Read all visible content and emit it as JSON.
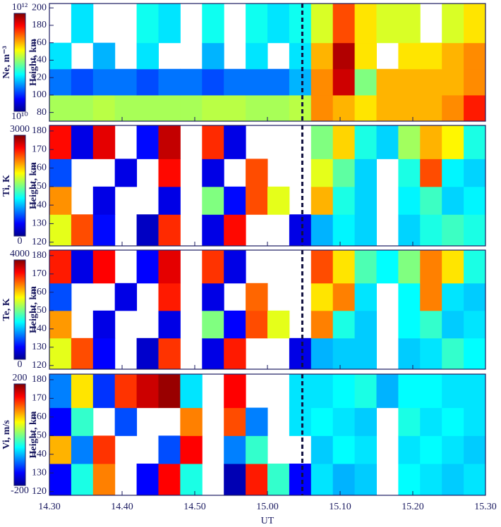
{
  "chart_data": [
    {
      "type": "heatmap",
      "colorbar_label": "Ne, m⁻³",
      "ylabel": "Height, km",
      "colormap": "jet",
      "clog": true,
      "clim": [
        10000000000.0,
        1000000000000.0
      ],
      "cticks": [
        {
          "value": 10000000000.0,
          "label": "10¹⁰"
        },
        {
          "value": 1000000000000.0,
          "label": "10¹²"
        }
      ],
      "xlim": [
        14.5,
        15.5
      ],
      "ylim": [
        70,
        205
      ],
      "yticks": [
        80,
        100,
        120,
        140,
        160,
        180,
        200
      ],
      "vline": 15.08,
      "xbins": [
        14.5,
        14.55,
        14.6,
        14.65,
        14.7,
        14.75,
        14.8,
        14.85,
        14.9,
        14.95,
        15,
        15.05,
        15.1,
        15.15,
        15.2,
        15.25,
        15.3,
        15.35,
        15.4,
        15.45,
        15.5
      ],
      "ybins": [
        70,
        100,
        130,
        160,
        205
      ],
      "z": [
        [
          120000000000.0,
          120000000000.0,
          130000000000.0,
          120000000000.0,
          120000000000.0,
          120000000000.0,
          120000000000.0,
          130000000000.0,
          130000000000.0,
          120000000000.0,
          120000000000.0,
          130000000000.0,
          300000000000.0,
          250000000000.0,
          200000000000.0,
          250000000000.0,
          250000000000.0,
          250000000000.0,
          300000000000.0,
          500000000000.0
        ],
        [
          30000000000.0,
          25000000000.0,
          30000000000.0,
          30000000000.0,
          25000000000.0,
          30000000000.0,
          30000000000.0,
          25000000000.0,
          30000000000.0,
          30000000000.0,
          30000000000.0,
          40000000000.0,
          300000000000.0,
          700000000000.0,
          100000000000.0,
          250000000000.0,
          250000000000.0,
          250000000000.0,
          250000000000.0,
          300000000000.0
        ],
        [
          50000000000.0,
          null,
          40000000000.0,
          null,
          50000000000.0,
          null,
          null,
          40000000000.0,
          null,
          50000000000.0,
          null,
          50000000000.0,
          250000000000.0,
          800000000000.0,
          200000000000.0,
          null,
          200000000000.0,
          200000000000.0,
          250000000000.0,
          300000000000.0
        ],
        [
          null,
          50000000000.0,
          null,
          null,
          60000000000.0,
          50000000000.0,
          null,
          60000000000.0,
          null,
          60000000000.0,
          50000000000.0,
          60000000000.0,
          150000000000.0,
          400000000000.0,
          200000000000.0,
          150000000000.0,
          150000000000.0,
          null,
          150000000000.0,
          200000000000.0
        ]
      ]
    },
    {
      "type": "heatmap",
      "colorbar_label": "Ti, K",
      "ylabel": "Height, km",
      "colormap": "jet",
      "clim": [
        0,
        3000
      ],
      "cticks": [
        0,
        3000
      ],
      "xlim": [
        14.5,
        15.5
      ],
      "ylim": [
        118,
        183
      ],
      "yticks": [
        120,
        130,
        140,
        150,
        160,
        170,
        180
      ],
      "vline": 15.08,
      "xbins": [
        14.5,
        14.55,
        14.6,
        14.65,
        14.7,
        14.75,
        14.8,
        14.85,
        14.9,
        14.95,
        15,
        15.05,
        15.1,
        15.15,
        15.2,
        15.25,
        15.3,
        15.35,
        15.4,
        15.45,
        15.5
      ],
      "ybins": [
        118,
        135,
        150,
        165,
        183
      ],
      "z": [
        [
          1800,
          2400,
          400,
          null,
          200,
          2500,
          null,
          300,
          2600,
          null,
          null,
          300,
          900,
          1100,
          1000,
          null,
          1000,
          1200,
          1300,
          1200
        ],
        [
          2200,
          null,
          300,
          null,
          null,
          300,
          null,
          1500,
          400,
          2400,
          1800,
          null,
          2100,
          1200,
          1000,
          null,
          1100,
          1300,
          1000,
          1100
        ],
        [
          600,
          null,
          null,
          300,
          null,
          2600,
          null,
          300,
          null,
          2400,
          null,
          null,
          1800,
          1400,
          1000,
          null,
          1200,
          2400,
          1100,
          1000
        ],
        [
          2600,
          300,
          2700,
          null,
          400,
          2800,
          null,
          2500,
          300,
          null,
          null,
          null,
          1500,
          2000,
          1200,
          1000,
          1600,
          2100,
          1900,
          1200
        ]
      ]
    },
    {
      "type": "heatmap",
      "colorbar_label": "Te, K",
      "ylabel": "Height, km",
      "colormap": "jet",
      "clim": [
        0,
        4000
      ],
      "cticks": [
        0,
        4000
      ],
      "xlim": [
        14.5,
        15.5
      ],
      "ylim": [
        118,
        183
      ],
      "yticks": [
        120,
        130,
        140,
        150,
        160,
        170,
        180
      ],
      "vline": 15.08,
      "xbins": [
        14.5,
        14.55,
        14.6,
        14.65,
        14.7,
        14.75,
        14.8,
        14.85,
        14.9,
        14.95,
        15,
        15.05,
        15.1,
        15.15,
        15.2,
        15.25,
        15.3,
        15.35,
        15.4,
        15.45,
        15.5
      ],
      "ybins": [
        118,
        135,
        150,
        165,
        183
      ],
      "z": [
        [
          2400,
          3200,
          500,
          null,
          300,
          3300,
          null,
          400,
          3400,
          null,
          null,
          400,
          1200,
          1300,
          1300,
          null,
          1300,
          1400,
          1700,
          1500
        ],
        [
          2900,
          null,
          400,
          null,
          null,
          400,
          null,
          2000,
          500,
          3200,
          2400,
          null,
          3000,
          1600,
          1300,
          null,
          1500,
          1700,
          1300,
          1400
        ],
        [
          800,
          null,
          null,
          400,
          null,
          3400,
          null,
          400,
          null,
          3100,
          null,
          null,
          2600,
          3000,
          1400,
          null,
          1500,
          3000,
          1400,
          1300
        ],
        [
          3400,
          400,
          3500,
          null,
          500,
          3600,
          null,
          3300,
          400,
          null,
          null,
          null,
          3200,
          2600,
          1800,
          1500,
          2000,
          3000,
          2600,
          1600
        ]
      ]
    },
    {
      "type": "heatmap",
      "colorbar_label": "Vi, m/s",
      "ylabel": "Height, km",
      "xlabel": "UT",
      "colormap": "jet",
      "clim": [
        -200,
        200
      ],
      "cticks": [
        -200,
        200
      ],
      "xlim": [
        14.5,
        15.5
      ],
      "ylim": [
        118,
        183
      ],
      "yticks": [
        120,
        130,
        140,
        150,
        160,
        170,
        180
      ],
      "vline": 15.08,
      "xticks": [
        {
          "value": 14.5,
          "label": "14.30"
        },
        {
          "value": 14.6667,
          "label": "14.40"
        },
        {
          "value": 14.8333,
          "label": "14.50"
        },
        {
          "value": 15,
          "label": "15.00"
        },
        {
          "value": 15.1667,
          "label": "15.10"
        },
        {
          "value": 15.3333,
          "label": "15.20"
        },
        {
          "value": 15.5,
          "label": "15.30"
        }
      ],
      "xbins": [
        14.5,
        14.55,
        14.6,
        14.65,
        14.7,
        14.75,
        14.8,
        14.85,
        14.9,
        14.95,
        15,
        15.05,
        15.1,
        15.15,
        15.2,
        15.25,
        15.3,
        15.35,
        15.4,
        15.45,
        15.5
      ],
      "ybins": [
        118,
        135,
        150,
        165,
        183
      ],
      "z": [
        [
          -150,
          -40,
          100,
          null,
          -150,
          150,
          -40,
          null,
          -180,
          140,
          -30,
          -150,
          -60,
          -80,
          -70,
          null,
          -50,
          -60,
          -70,
          -60
        ],
        [
          80,
          -100,
          130,
          null,
          null,
          -120,
          150,
          null,
          -100,
          -30,
          null,
          null,
          -70,
          -50,
          -60,
          null,
          -60,
          -50,
          -60,
          -70
        ],
        [
          -150,
          -30,
          null,
          -120,
          null,
          null,
          100,
          null,
          120,
          -100,
          null,
          -60,
          -50,
          -60,
          -70,
          null,
          -40,
          -60,
          -50,
          -60
        ],
        [
          -100,
          60,
          -130,
          130,
          170,
          190,
          -60,
          null,
          150,
          null,
          null,
          -60,
          -60,
          -50,
          -40,
          -80,
          -50,
          -50,
          -60,
          -60
        ]
      ]
    }
  ]
}
